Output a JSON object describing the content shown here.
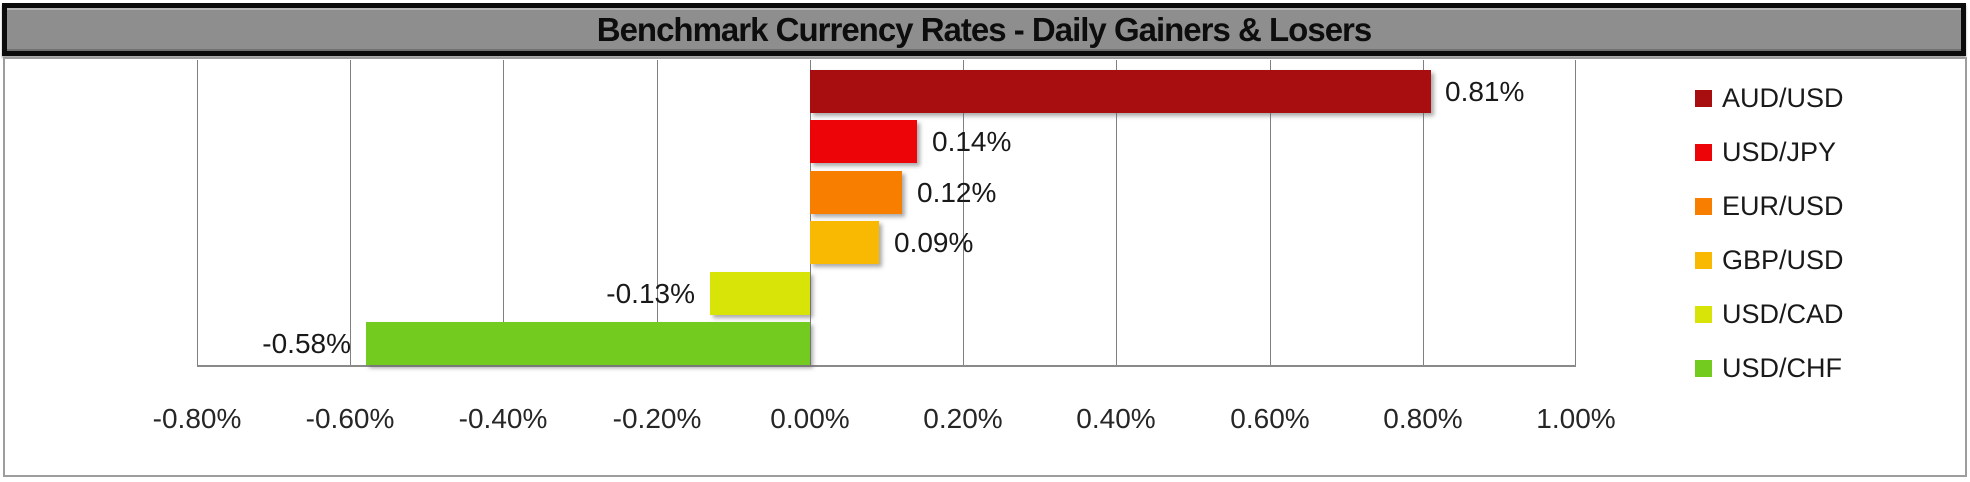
{
  "title": "Benchmark Currency Rates - Daily Gainers & Losers",
  "chart_data": {
    "type": "bar",
    "orientation": "horizontal",
    "title": "Benchmark Currency Rates - Daily Gainers & Losers",
    "series": [
      {
        "name": "AUD/USD",
        "value": 0.81,
        "label": "0.81%",
        "color": "#A80D10"
      },
      {
        "name": "USD/JPY",
        "value": 0.14,
        "label": "0.14%",
        "color": "#EC0408"
      },
      {
        "name": "EUR/USD",
        "value": 0.12,
        "label": "0.12%",
        "color": "#F87E00"
      },
      {
        "name": "GBP/USD",
        "value": 0.09,
        "label": "0.09%",
        "color": "#F9B802"
      },
      {
        "name": "USD/CAD",
        "value": -0.13,
        "label": "-0.13%",
        "color": "#D8E408"
      },
      {
        "name": "USD/CHF",
        "value": -0.58,
        "label": "-0.58%",
        "color": "#74CB20"
      }
    ],
    "xlim": [
      -0.8,
      1.0
    ],
    "x_tick_step": 0.2,
    "x_tick_labels": [
      "-0.80%",
      "-0.60%",
      "-0.40%",
      "-0.20%",
      "0.00%",
      "0.20%",
      "0.40%",
      "0.60%",
      "0.80%",
      "1.00%"
    ],
    "grid": true,
    "legend_position": "right",
    "data_labels": true
  },
  "colors": {
    "title_bar_bg": "#8E8E8E",
    "title_bar_border": "#0B0B0B",
    "chart_box_border": "#9D9D9D",
    "gridline": "#808080",
    "label_text": "#191919"
  }
}
